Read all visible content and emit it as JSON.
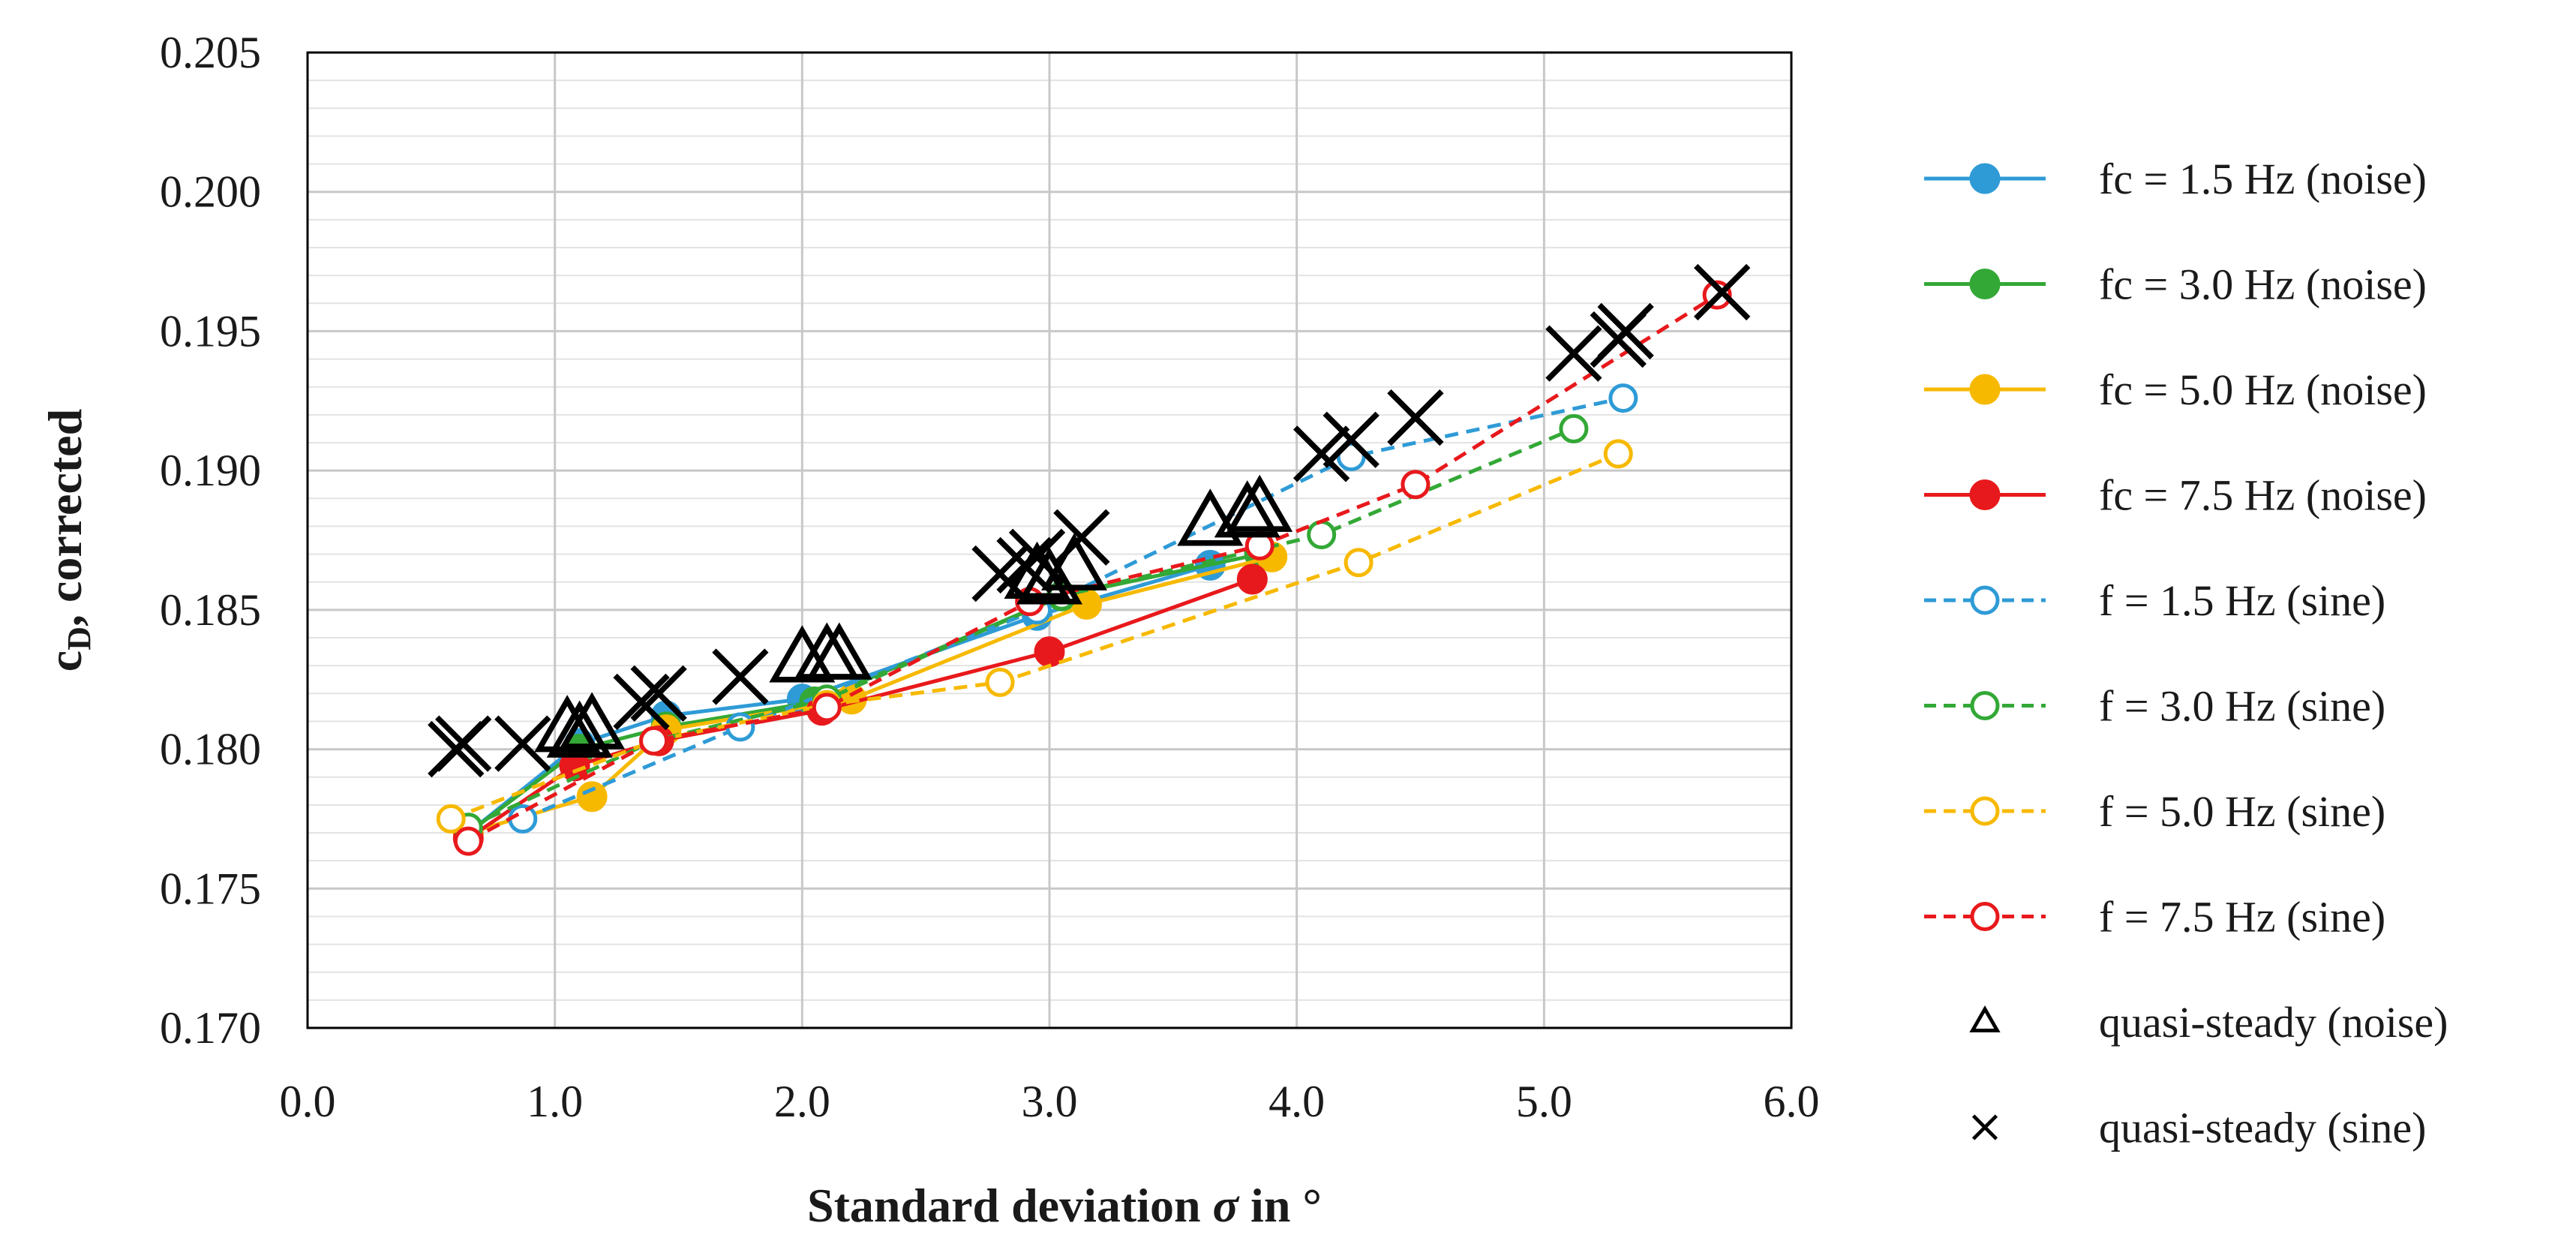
{
  "chart_data": {
    "type": "scatter",
    "title": "",
    "xlabel": "Standard deviation σ in °",
    "ylabel": "cD, corrected",
    "ylabel_main": "c",
    "ylabel_sub": "D",
    "ylabel_rest": ", corrected",
    "xlabel_main": "Standard deviation ",
    "xlabel_sigma": "σ",
    "xlabel_rest": " in °",
    "xlim": [
      0.0,
      6.0
    ],
    "ylim": [
      0.17,
      0.205
    ],
    "x_ticks": [
      "0.0",
      "1.0",
      "2.0",
      "3.0",
      "4.0",
      "5.0",
      "6.0"
    ],
    "y_ticks": [
      "0.170",
      "0.175",
      "0.180",
      "0.185",
      "0.190",
      "0.195",
      "0.200",
      "0.205"
    ],
    "x_tick_values": [
      0,
      1,
      2,
      3,
      4,
      5,
      6
    ],
    "y_tick_values": [
      0.17,
      0.175,
      0.18,
      0.185,
      0.19,
      0.195,
      0.2,
      0.205
    ],
    "grid": {
      "major_x": true,
      "major_y": true,
      "minor_y_step": 0.001
    },
    "legend_position": "right",
    "series": [
      {
        "name": "fc = 1.5 Hz (noise)",
        "color": "#2e9bd6",
        "line": "solid",
        "marker": "filled-circle",
        "x": [
          0.65,
          1.1,
          1.45,
          2.0,
          2.95,
          3.65
        ],
        "y": [
          0.177,
          0.1802,
          0.1812,
          0.1818,
          0.1848,
          0.1866
        ]
      },
      {
        "name": "fc = 3.0 Hz (noise)",
        "color": "#33a836",
        "line": "solid",
        "marker": "filled-circle",
        "x": [
          0.65,
          1.1,
          1.45,
          2.05,
          3.05,
          3.85
        ],
        "y": [
          0.177,
          0.18,
          0.1808,
          0.1817,
          0.1855,
          0.187
        ]
      },
      {
        "name": "fc = 5.0 Hz (noise)",
        "color": "#f7b900",
        "line": "solid",
        "marker": "filled-circle",
        "x": [
          0.65,
          1.15,
          1.45,
          2.2,
          3.15,
          3.9
        ],
        "y": [
          0.177,
          0.1783,
          0.1807,
          0.1818,
          0.1852,
          0.1869
        ]
      },
      {
        "name": "fc = 7.5 Hz (noise)",
        "color": "#e8191c",
        "line": "solid",
        "marker": "filled-circle",
        "x": [
          0.65,
          1.08,
          1.42,
          2.08,
          3.0,
          3.82
        ],
        "y": [
          0.1768,
          0.1794,
          0.1803,
          0.1814,
          0.1835,
          0.1861
        ]
      },
      {
        "name": "f = 1.5 Hz (sine)",
        "color": "#2e9bd6",
        "line": "dashed",
        "marker": "open-circle",
        "x": [
          0.87,
          1.75,
          2.95,
          4.22,
          5.32
        ],
        "y": [
          0.1775,
          0.1808,
          0.185,
          0.1905,
          0.1926
        ]
      },
      {
        "name": "f = 3.0 Hz (sine)",
        "color": "#33a836",
        "line": "dashed",
        "marker": "open-circle",
        "x": [
          0.65,
          1.4,
          2.1,
          3.05,
          4.1,
          5.12
        ],
        "y": [
          0.1772,
          0.1803,
          0.1818,
          0.1855,
          0.1877,
          0.1915
        ]
      },
      {
        "name": "f = 5.0 Hz (sine)",
        "color": "#f7b900",
        "line": "dashed",
        "marker": "open-circle",
        "x": [
          0.58,
          1.4,
          2.1,
          2.8,
          4.25,
          5.3
        ],
        "y": [
          0.1775,
          0.1803,
          0.1816,
          0.1824,
          0.1867,
          0.1906
        ]
      },
      {
        "name": "f = 7.5 Hz (sine)",
        "color": "#e8191c",
        "line": "dashed",
        "marker": "open-circle",
        "x": [
          0.65,
          1.4,
          2.1,
          2.92,
          3.85,
          4.48,
          5.7
        ],
        "y": [
          0.1767,
          0.1803,
          0.1815,
          0.1853,
          0.1873,
          0.1895,
          0.1963
        ]
      },
      {
        "name": "quasi-steady (noise)",
        "color": "#000000",
        "line": "none",
        "marker": "open-triangle",
        "x": [
          1.05,
          1.1,
          1.15,
          2.0,
          2.1,
          2.15,
          2.95,
          3.0,
          3.1,
          3.65,
          3.8,
          3.85
        ],
        "y": [
          0.1807,
          0.1805,
          0.1808,
          0.1832,
          0.1833,
          0.1833,
          0.1862,
          0.186,
          0.1865,
          0.1881,
          0.1884,
          0.1886
        ]
      },
      {
        "name": "quasi-steady (sine)",
        "color": "#000000",
        "line": "none",
        "marker": "cross",
        "x": [
          0.6,
          0.63,
          0.87,
          1.35,
          1.42,
          1.75,
          2.8,
          2.9,
          2.95,
          3.13,
          4.1,
          4.22,
          4.48,
          5.12,
          5.3,
          5.33,
          5.72
        ],
        "y": [
          0.18,
          0.1802,
          0.1802,
          0.1817,
          0.182,
          0.1826,
          0.1863,
          0.1866,
          0.1869,
          0.1876,
          0.1906,
          0.1911,
          0.1919,
          0.1942,
          0.1947,
          0.195,
          0.1964
        ]
      }
    ]
  }
}
